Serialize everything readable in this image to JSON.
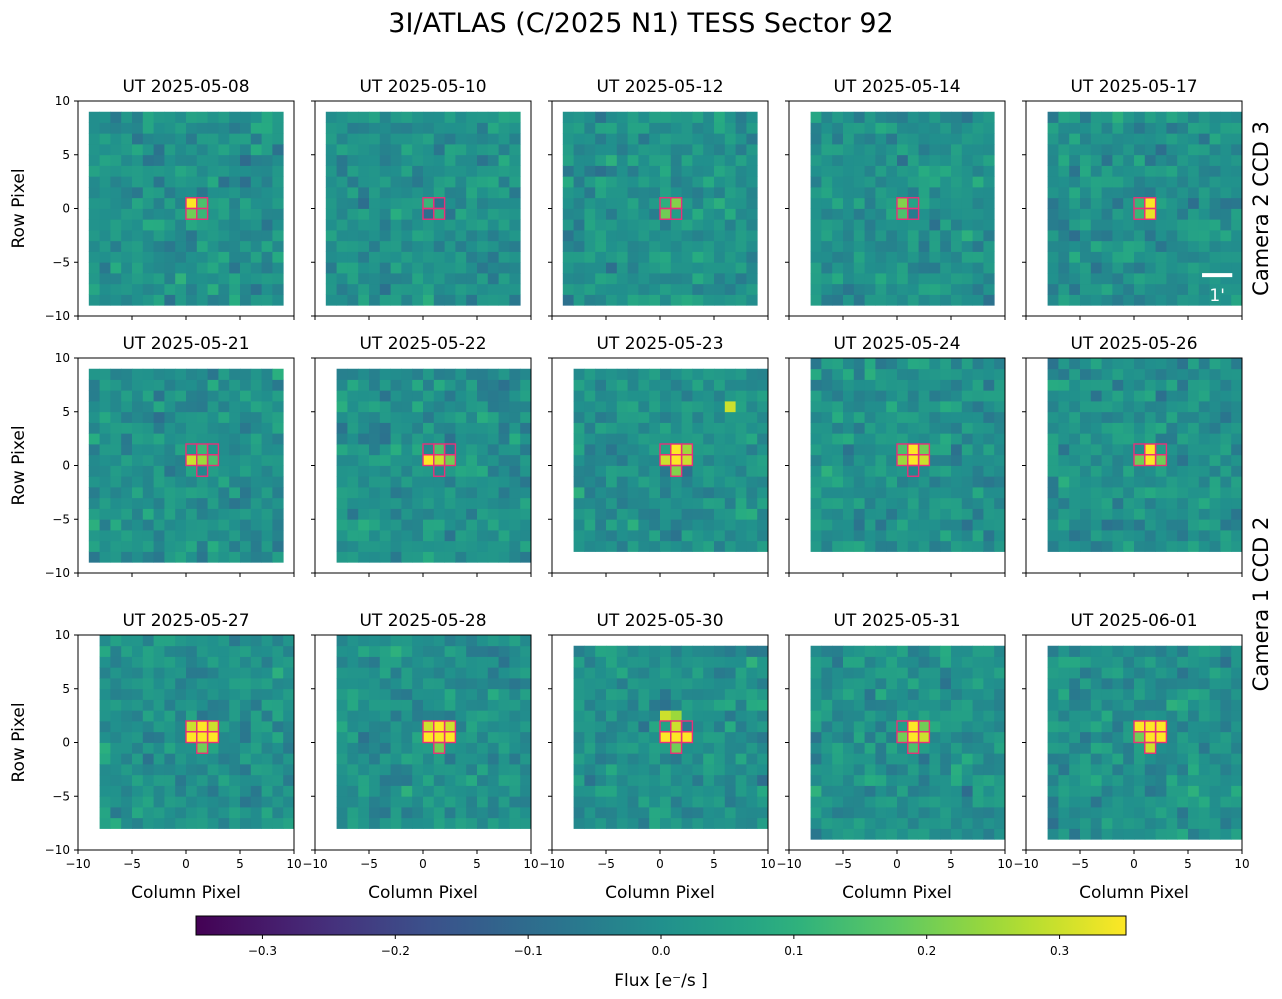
{
  "chart_data": {
    "type": "heatmap",
    "title": "3I/ATLAS (C/2025 N1) TESS Sector 92",
    "xlabel": "Column Pixel",
    "ylabel": "Row Pixel",
    "xlim": [
      -10,
      10
    ],
    "ylim": [
      -10,
      10
    ],
    "xticks": [
      -10,
      -5,
      0,
      5,
      10
    ],
    "yticks": [
      -10,
      -5,
      0,
      5,
      10
    ],
    "colormap": "viridis",
    "colorbar": {
      "label": "Flux [e⁻/s ]",
      "vmin": -0.35,
      "vmax": 0.35,
      "ticks": [
        -0.3,
        -0.2,
        -0.1,
        0.0,
        0.1,
        0.2,
        0.3
      ],
      "tick_labels": [
        "−0.3",
        "−0.2",
        "−0.1",
        "0.0",
        "0.1",
        "0.2",
        "0.3"
      ]
    },
    "row_labels": [
      {
        "text": "Camera 2 CCD 3",
        "rows": [
          0
        ]
      },
      {
        "text": "Camera 1 CCD 2",
        "rows": [
          1,
          2
        ]
      }
    ],
    "scale_bar": {
      "label": "1'",
      "panel": 4
    },
    "aperture_color": "#e8307a",
    "panels": [
      {
        "title": "UT 2025-05-08",
        "extent": [
          -9,
          9,
          -9,
          9
        ],
        "aperture": [
          [
            0,
            0
          ],
          [
            1,
            0
          ],
          [
            0,
            -1
          ],
          [
            1,
            -1
          ]
        ],
        "bright": {
          "0,0": 0.35,
          "0,-1": 0.2,
          "1,0": 0.15,
          "1,-1": 0.12
        }
      },
      {
        "title": "UT 2025-05-10",
        "extent": [
          -9,
          9,
          -9,
          9
        ],
        "aperture": [
          [
            0,
            0
          ],
          [
            1,
            0
          ],
          [
            0,
            -1
          ],
          [
            1,
            -1
          ]
        ],
        "bright": {
          "0,0": 0.12,
          "1,-1": 0.1
        }
      },
      {
        "title": "UT 2025-05-12",
        "extent": [
          -9,
          9,
          -9,
          9
        ],
        "aperture": [
          [
            0,
            0
          ],
          [
            1,
            0
          ],
          [
            0,
            -1
          ],
          [
            1,
            -1
          ]
        ],
        "bright": {
          "1,0": 0.22,
          "0,-1": 0.2,
          "0,0": 0.1
        }
      },
      {
        "title": "UT 2025-05-14",
        "extent": [
          -8,
          9,
          -9,
          9
        ],
        "aperture": [
          [
            0,
            0
          ],
          [
            1,
            0
          ],
          [
            0,
            -1
          ],
          [
            1,
            -1
          ]
        ],
        "bright": {
          "0,0": 0.22,
          "0,-1": 0.15
        }
      },
      {
        "title": "UT 2025-05-17",
        "extent": [
          -8,
          10,
          -9,
          9
        ],
        "aperture": [
          [
            0,
            0
          ],
          [
            1,
            0
          ],
          [
            0,
            -1
          ],
          [
            1,
            -1
          ]
        ],
        "bright": {
          "1,0": 0.35,
          "1,-1": 0.33,
          "0,0": 0.12,
          "0,-1": 0.12
        }
      },
      {
        "title": "UT 2025-05-21",
        "extent": [
          -9,
          9,
          -9,
          9
        ],
        "aperture": [
          [
            0,
            1
          ],
          [
            1,
            1
          ],
          [
            2,
            1
          ],
          [
            0,
            0
          ],
          [
            1,
            0
          ],
          [
            2,
            0
          ],
          [
            1,
            -1
          ]
        ],
        "bright": {
          "0,0": 0.3,
          "1,0": 0.25,
          "2,0": 0.15,
          "1,1": 0.12
        }
      },
      {
        "title": "UT 2025-05-22",
        "extent": [
          -8,
          10,
          -9,
          9
        ],
        "aperture": [
          [
            0,
            1
          ],
          [
            1,
            1
          ],
          [
            2,
            1
          ],
          [
            0,
            0
          ],
          [
            1,
            0
          ],
          [
            2,
            0
          ],
          [
            1,
            -1
          ]
        ],
        "bright": {
          "0,0": 0.35,
          "1,0": 0.3,
          "2,0": 0.2,
          "1,1": 0.15
        }
      },
      {
        "title": "UT 2025-05-23",
        "extent": [
          -8,
          10,
          -8,
          9
        ],
        "aperture": [
          [
            0,
            1
          ],
          [
            1,
            1
          ],
          [
            2,
            1
          ],
          [
            0,
            0
          ],
          [
            1,
            0
          ],
          [
            2,
            0
          ],
          [
            1,
            -1
          ]
        ],
        "bright": {
          "1,1": 0.35,
          "1,0": 0.35,
          "0,0": 0.3,
          "2,0": 0.3,
          "2,1": 0.25,
          "1,-1": 0.22,
          "6,5": 0.3
        }
      },
      {
        "title": "UT 2025-05-24",
        "extent": [
          -8,
          10,
          -8,
          10
        ],
        "aperture": [
          [
            0,
            1
          ],
          [
            1,
            1
          ],
          [
            2,
            1
          ],
          [
            0,
            0
          ],
          [
            1,
            0
          ],
          [
            2,
            0
          ],
          [
            1,
            -1
          ]
        ],
        "bright": {
          "1,1": 0.35,
          "1,0": 0.35,
          "0,0": 0.25,
          "2,0": 0.3,
          "2,1": 0.2,
          "0,1": 0.15
        }
      },
      {
        "title": "UT 2025-05-26",
        "extent": [
          -8,
          10,
          -8,
          10
        ],
        "aperture": [
          [
            0,
            1
          ],
          [
            1,
            1
          ],
          [
            2,
            1
          ],
          [
            0,
            0
          ],
          [
            1,
            0
          ],
          [
            2,
            0
          ]
        ],
        "bright": {
          "1,1": 0.35,
          "1,0": 0.35,
          "0,0": 0.2,
          "2,0": 0.2
        }
      },
      {
        "title": "UT 2025-05-27",
        "extent": [
          -8,
          10,
          -8,
          10
        ],
        "aperture": [
          [
            0,
            1
          ],
          [
            1,
            1
          ],
          [
            2,
            1
          ],
          [
            0,
            0
          ],
          [
            1,
            0
          ],
          [
            2,
            0
          ],
          [
            1,
            -1
          ]
        ],
        "bright": {
          "1,1": 0.35,
          "0,0": 0.35,
          "1,0": 0.35,
          "2,0": 0.35,
          "2,1": 0.3,
          "0,1": 0.3,
          "1,-1": 0.2
        }
      },
      {
        "title": "UT 2025-05-28",
        "extent": [
          -8,
          10,
          -8,
          10
        ],
        "aperture": [
          [
            0,
            1
          ],
          [
            1,
            1
          ],
          [
            2,
            1
          ],
          [
            0,
            0
          ],
          [
            1,
            0
          ],
          [
            2,
            0
          ],
          [
            1,
            -1
          ]
        ],
        "bright": {
          "1,1": 0.35,
          "0,0": 0.35,
          "1,0": 0.35,
          "2,0": 0.35,
          "2,1": 0.3,
          "0,1": 0.3,
          "1,-1": 0.2
        }
      },
      {
        "title": "UT 2025-05-30",
        "extent": [
          -8,
          10,
          -8,
          9
        ],
        "aperture": [
          [
            0,
            1
          ],
          [
            1,
            1
          ],
          [
            2,
            1
          ],
          [
            0,
            0
          ],
          [
            1,
            0
          ],
          [
            2,
            0
          ],
          [
            1,
            -1
          ]
        ],
        "bright": {
          "1,1": 0.3,
          "0,0": 0.35,
          "1,0": 0.35,
          "2,0": 0.35,
          "0,2": 0.3,
          "1,2": 0.25,
          "1,-1": 0.2
        }
      },
      {
        "title": "UT 2025-05-31",
        "extent": [
          -8,
          10,
          -9,
          9
        ],
        "aperture": [
          [
            0,
            1
          ],
          [
            1,
            1
          ],
          [
            2,
            1
          ],
          [
            0,
            0
          ],
          [
            1,
            0
          ],
          [
            2,
            0
          ],
          [
            1,
            -1
          ]
        ],
        "bright": {
          "1,1": 0.35,
          "1,0": 0.35,
          "2,0": 0.3,
          "0,0": 0.2,
          "2,1": 0.2,
          "1,-1": 0.15
        }
      },
      {
        "title": "UT 2025-06-01",
        "extent": [
          -8,
          10,
          -9,
          9
        ],
        "aperture": [
          [
            0,
            1
          ],
          [
            1,
            1
          ],
          [
            2,
            1
          ],
          [
            0,
            0
          ],
          [
            1,
            0
          ],
          [
            2,
            0
          ],
          [
            1,
            -1
          ]
        ],
        "bright": {
          "0,1": 0.35,
          "1,1": 0.35,
          "2,1": 0.35,
          "1,0": 0.35,
          "2,0": 0.35,
          "1,-1": 0.3,
          "0,0": 0.2
        }
      }
    ]
  }
}
